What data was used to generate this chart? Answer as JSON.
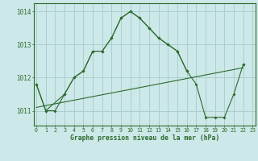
{
  "series1_x": [
    0,
    1,
    3,
    4,
    5,
    6,
    7,
    8,
    9,
    10,
    11,
    12,
    13,
    14,
    15,
    16,
    22
  ],
  "series1_y": [
    1011.8,
    1011.0,
    1011.5,
    1012.0,
    1012.2,
    1012.8,
    1012.8,
    1013.2,
    1013.8,
    1014.0,
    1013.8,
    1013.5,
    1013.2,
    1013.0,
    1012.8,
    1012.2,
    1012.4
  ],
  "series2_x": [
    0,
    1,
    2,
    3,
    4,
    5,
    6,
    7,
    8,
    9,
    10,
    11,
    12,
    13,
    14,
    15,
    16,
    17,
    18,
    19,
    20,
    21,
    22
  ],
  "series2_y": [
    1011.8,
    1011.0,
    1011.0,
    1011.5,
    1012.0,
    1012.2,
    1012.8,
    1012.8,
    1013.2,
    1013.8,
    1014.0,
    1013.8,
    1013.5,
    1013.2,
    1013.0,
    1012.8,
    1012.2,
    1011.8,
    1010.8,
    1010.8,
    1010.8,
    1011.5,
    1012.4
  ],
  "trend_x": [
    0,
    22
  ],
  "trend_y": [
    1011.1,
    1012.3
  ],
  "line_color": "#2d6a2d",
  "background_color": "#cce8e8",
  "grid_color": "#aacfcf",
  "xlabel": "Graphe pression niveau de la mer (hPa)",
  "ylabel_ticks": [
    1011,
    1012,
    1013,
    1014
  ],
  "xtick_labels": [
    "0",
    "1",
    "2",
    "3",
    "4",
    "5",
    "6",
    "7",
    "8",
    "9",
    "10",
    "11",
    "12",
    "13",
    "14",
    "15",
    "16",
    "17",
    "18",
    "19",
    "20",
    "21",
    "22",
    "23"
  ],
  "xlim": [
    -0.3,
    23.3
  ],
  "ylim": [
    1010.55,
    1014.25
  ]
}
